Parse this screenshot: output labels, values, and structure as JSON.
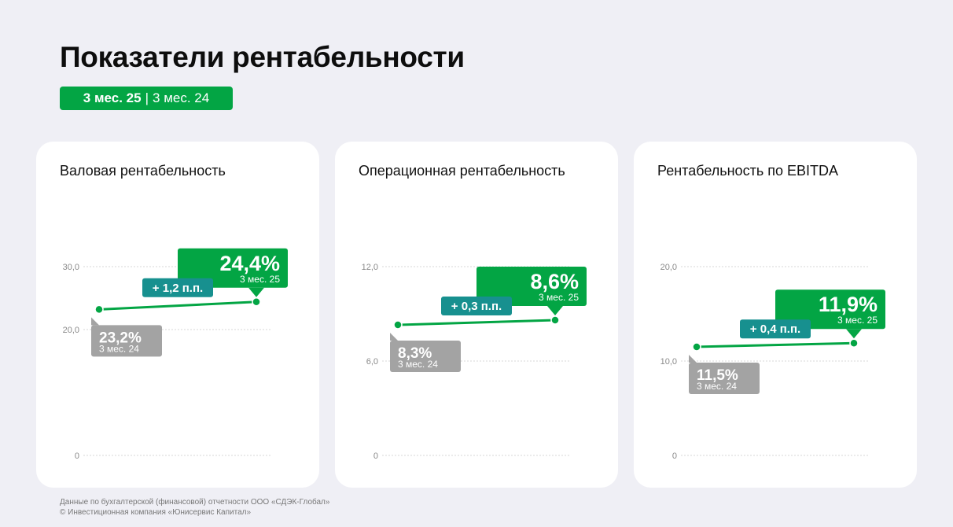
{
  "header": {
    "title": "Показатели рентабельности",
    "period_current": "3 мес. 25",
    "period_separator": "|",
    "period_previous": "3 мес. 24"
  },
  "colors": {
    "current": "#03a544",
    "previous": "#a3a3a3",
    "delta": "#17908f",
    "background": "#efeff5",
    "card": "#ffffff"
  },
  "chart_data": [
    {
      "type": "line",
      "title": "Валовая рентабельность",
      "y_ticks": [
        "30,0",
        "20,0",
        "0"
      ],
      "y_tick_values": [
        30,
        20,
        0
      ],
      "ylim": [
        0,
        30
      ],
      "categories": [
        "3 мес. 24",
        "3 мес. 25"
      ],
      "values": [
        23.2,
        24.4
      ],
      "value_labels": [
        "23,2%",
        "24,4%"
      ],
      "delta_label": "+ 1,2 п.п.",
      "grid": true
    },
    {
      "type": "line",
      "title": "Операционная рентабельность",
      "y_ticks": [
        "12,0",
        "6,0",
        "0"
      ],
      "y_tick_values": [
        12,
        6,
        0
      ],
      "ylim": [
        0,
        12
      ],
      "categories": [
        "3 мес. 24",
        "3 мес. 25"
      ],
      "values": [
        8.3,
        8.6
      ],
      "value_labels": [
        "8,3%",
        "8,6%"
      ],
      "delta_label": "+ 0,3 п.п.",
      "grid": true
    },
    {
      "type": "line",
      "title": "Рентабельность по EBITDA",
      "y_ticks": [
        "20,0",
        "10,0",
        "0"
      ],
      "y_tick_values": [
        20,
        10,
        0
      ],
      "ylim": [
        0,
        20
      ],
      "categories": [
        "3 мес. 24",
        "3 мес. 25"
      ],
      "values": [
        11.5,
        11.9
      ],
      "value_labels": [
        "11,5%",
        "11,9%"
      ],
      "delta_label": "+ 0,4 п.п.",
      "grid": true
    }
  ],
  "footer": {
    "source": "Данные по бухгалтерской (финансовой) отчетности ООО «СДЭК-Глобал»",
    "copyright": "© Инвестиционная компания «Юнисервис Капитал»"
  }
}
